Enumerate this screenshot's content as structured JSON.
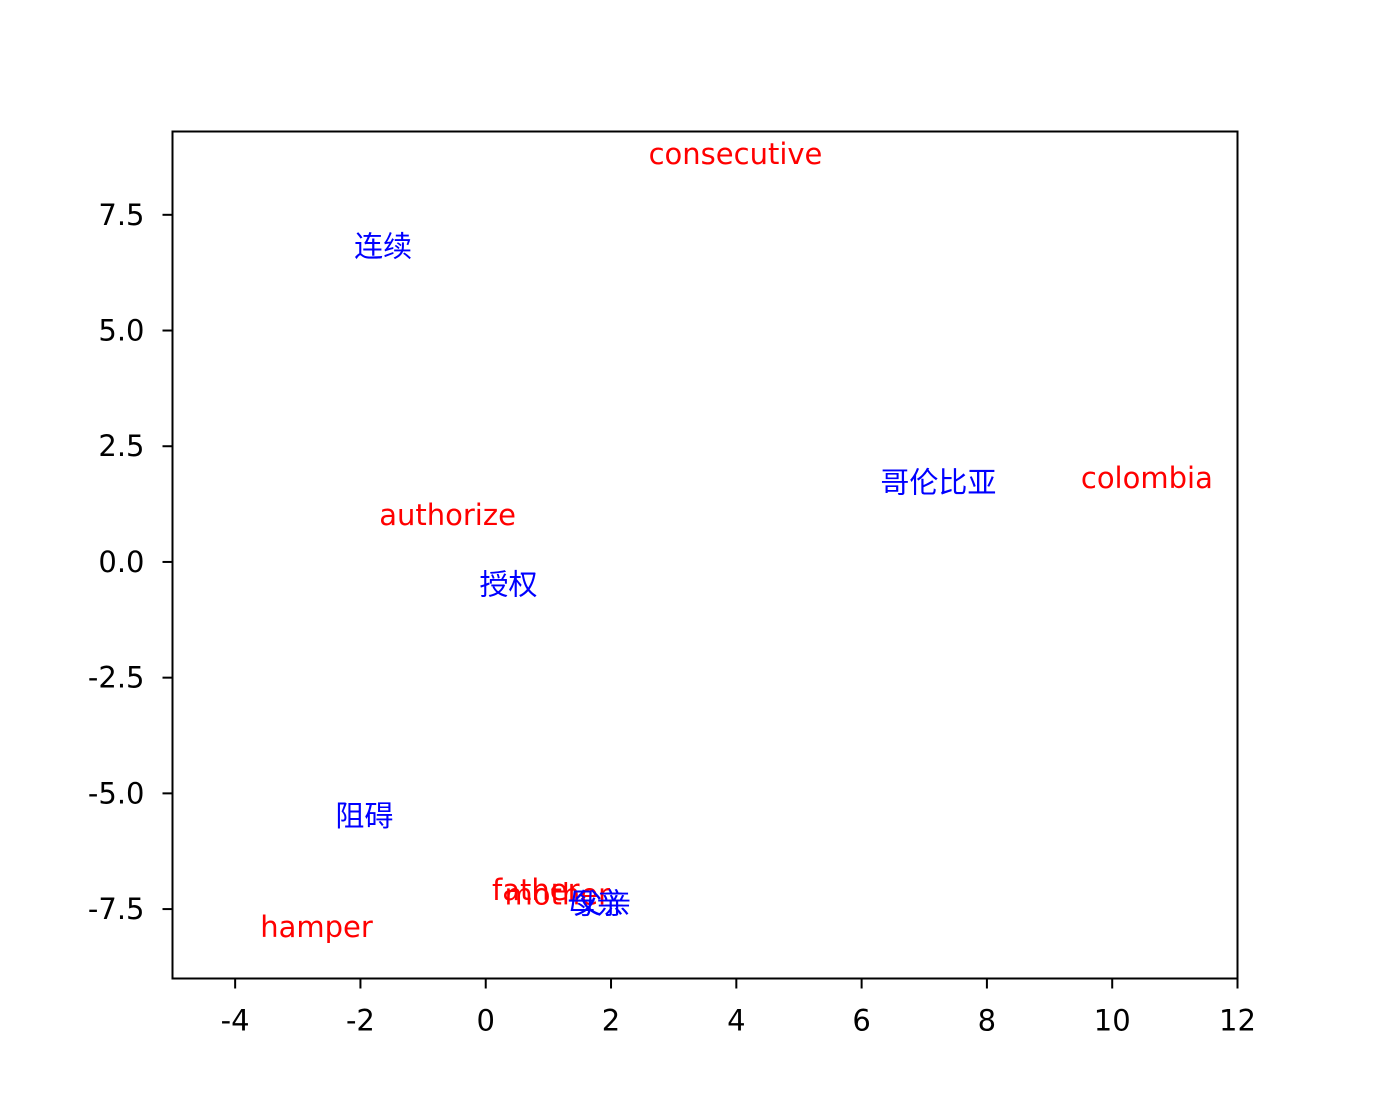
{
  "chart_data": {
    "type": "scatter",
    "title": "",
    "xlabel": "",
    "ylabel": "",
    "xlim": [
      -5,
      12
    ],
    "ylim": [
      -9.0,
      9.3
    ],
    "xticks": [
      -4,
      -2,
      0,
      2,
      4,
      6,
      8,
      10,
      12
    ],
    "xtick_labels": [
      "-4",
      "-2",
      "0",
      "2",
      "4",
      "6",
      "8",
      "10",
      "12"
    ],
    "yticks": [
      7.5,
      5.0,
      2.5,
      0.0,
      -2.5,
      -5.0,
      -7.5
    ],
    "ytick_labels": [
      "7.5",
      "5.0",
      "2.5",
      "0.0",
      "-2.5",
      "-5.0",
      "-7.5"
    ],
    "grid": false,
    "colors": {
      "english": "#ff0000",
      "chinese": "#0000ff",
      "axes": "#000000"
    },
    "points": [
      {
        "text": "consecutive",
        "x": 2.6,
        "y": 8.6,
        "lang": "en"
      },
      {
        "text": "连续",
        "x": -2.1,
        "y": 6.6,
        "lang": "zh"
      },
      {
        "text": "哥伦比亚",
        "x": 6.3,
        "y": 1.5,
        "lang": "zh"
      },
      {
        "text": "colombia",
        "x": 9.5,
        "y": 1.6,
        "lang": "en"
      },
      {
        "text": "authorize",
        "x": -1.7,
        "y": 0.8,
        "lang": "en"
      },
      {
        "text": "授权",
        "x": -0.1,
        "y": -0.7,
        "lang": "zh"
      },
      {
        "text": "阻碍",
        "x": -2.4,
        "y": -5.7,
        "lang": "zh"
      },
      {
        "text": "father",
        "x": 0.1,
        "y": -7.3,
        "lang": "en"
      },
      {
        "text": "mother",
        "x": 0.3,
        "y": -7.4,
        "lang": "en"
      },
      {
        "text": "母亲",
        "x": 1.3,
        "y": -7.6,
        "lang": "zh"
      },
      {
        "text": "父亲",
        "x": 1.4,
        "y": -7.6,
        "lang": "zh"
      },
      {
        "text": "hamper",
        "x": -3.6,
        "y": -8.1,
        "lang": "en"
      }
    ]
  }
}
